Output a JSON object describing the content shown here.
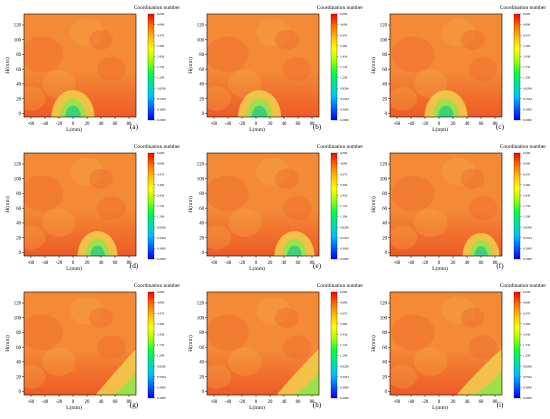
{
  "figure": {
    "panel_labels": [
      "(a)",
      "(b)",
      "(c)",
      "(d)",
      "(e)",
      "(f)",
      "(g)",
      "(h)",
      "(i)"
    ]
  },
  "chart_data": [
    {
      "type": "heatmap",
      "panel": "(a)",
      "title": "Coordination number",
      "xlabel": "L(mm)",
      "ylabel": "H(mm)",
      "x_ticks": [
        -60,
        -40,
        -20,
        0,
        20,
        40,
        60,
        80
      ],
      "y_ticks": [
        0,
        20,
        40,
        60,
        80,
        100,
        120
      ],
      "xlim": [
        -70,
        90
      ],
      "ylim": [
        -5,
        135
      ],
      "hole_center_x": 0,
      "hole_radius": 14,
      "hole_shape": "dome",
      "colorbar_ticks": [
        "6.000",
        "4.696",
        "4.370",
        "3.366",
        "2.436",
        "1.732",
        "1.209",
        "0.8296",
        "0.5504",
        "0.3000",
        "0.2000"
      ]
    },
    {
      "type": "heatmap",
      "panel": "(b)",
      "title": "Coordination number",
      "xlabel": "L(mm)",
      "ylabel": "H(mm)",
      "x_ticks": [
        -60,
        -40,
        -20,
        0,
        20,
        40,
        60,
        80
      ],
      "y_ticks": [
        0,
        20,
        40,
        60,
        80,
        100,
        120
      ],
      "xlim": [
        -70,
        90
      ],
      "ylim": [
        -5,
        135
      ],
      "hole_center_x": 5,
      "hole_radius": 14,
      "hole_shape": "dome",
      "colorbar_ticks": [
        "6.000",
        "4.696",
        "4.370",
        "3.366",
        "2.436",
        "1.732",
        "1.209",
        "0.8296",
        "0.5504",
        "0.3000",
        "0.2000"
      ]
    },
    {
      "type": "heatmap",
      "panel": "(c)",
      "title": "Coordination number",
      "xlabel": "L(mm)",
      "ylabel": "H(mm)",
      "x_ticks": [
        -60,
        -40,
        -20,
        0,
        20,
        40,
        60,
        80
      ],
      "y_ticks": [
        0,
        20,
        40,
        60,
        80,
        100,
        120
      ],
      "xlim": [
        -70,
        90
      ],
      "ylim": [
        -5,
        135
      ],
      "hole_center_x": 10,
      "hole_radius": 14,
      "hole_shape": "dome",
      "colorbar_ticks": [
        "6.000",
        "4.696",
        "4.370",
        "3.366",
        "2.436",
        "1.732",
        "1.209",
        "0.8296",
        "0.5504",
        "0.3000",
        "0.2000"
      ]
    },
    {
      "type": "heatmap",
      "panel": "(d)",
      "title": "Coordination number",
      "xlabel": "L(mm)",
      "ylabel": "H(mm)",
      "x_ticks": [
        -60,
        -40,
        -20,
        0,
        20,
        40,
        60,
        80
      ],
      "y_ticks": [
        0,
        20,
        40,
        60,
        80,
        100,
        120
      ],
      "xlim": [
        -70,
        90
      ],
      "ylim": [
        -5,
        135
      ],
      "hole_center_x": 35,
      "hole_radius": 13,
      "hole_shape": "dome",
      "colorbar_ticks": [
        "6.000",
        "4.696",
        "4.370",
        "3.366",
        "2.436",
        "1.732",
        "1.209",
        "0.8296",
        "0.5504",
        "0.3000",
        "0.2000"
      ]
    },
    {
      "type": "heatmap",
      "panel": "(e)",
      "title": "Coordination number",
      "xlabel": "L(mm)",
      "ylabel": "H(mm)",
      "x_ticks": [
        -60,
        -40,
        -20,
        0,
        20,
        40,
        60,
        80
      ],
      "y_ticks": [
        0,
        20,
        40,
        60,
        80,
        100,
        120
      ],
      "xlim": [
        -70,
        90
      ],
      "ylim": [
        -5,
        135
      ],
      "hole_center_x": 55,
      "hole_radius": 13,
      "hole_shape": "dome",
      "colorbar_ticks": [
        "6.000",
        "4.696",
        "4.370",
        "3.366",
        "2.436",
        "1.732",
        "1.209",
        "0.8296",
        "0.5504",
        "0.3000",
        "0.2000"
      ]
    },
    {
      "type": "heatmap",
      "panel": "(f)",
      "title": "Coordination number",
      "xlabel": "L(mm)",
      "ylabel": "H(mm)",
      "x_ticks": [
        -60,
        -40,
        -20,
        0,
        20,
        40,
        60,
        80
      ],
      "y_ticks": [
        0,
        20,
        40,
        60,
        80,
        100,
        120
      ],
      "xlim": [
        -70,
        90
      ],
      "ylim": [
        -5,
        135
      ],
      "hole_center_x": 60,
      "hole_radius": 12,
      "hole_shape": "dome",
      "colorbar_ticks": [
        "6.000",
        "4.696",
        "4.370",
        "3.366",
        "2.436",
        "1.732",
        "1.209",
        "0.8296",
        "0.5504",
        "0.3000",
        "0.2000"
      ]
    },
    {
      "type": "heatmap",
      "panel": "(g)",
      "title": "Coordination number",
      "xlabel": "L(mm)",
      "ylabel": "H(mm)",
      "x_ticks": [
        -60,
        -40,
        -20,
        0,
        20,
        40,
        60,
        80
      ],
      "y_ticks": [
        0,
        20,
        40,
        60,
        80,
        100,
        120
      ],
      "xlim": [
        -70,
        90
      ],
      "ylim": [
        -5,
        135
      ],
      "hole_center_x": 75,
      "hole_radius": 18,
      "hole_shape": "edge",
      "colorbar_ticks": [
        "6.000",
        "4.696",
        "4.370",
        "3.366",
        "2.436",
        "1.732",
        "1.209",
        "0.8296",
        "0.5504",
        "0.3000",
        "0.2000"
      ]
    },
    {
      "type": "heatmap",
      "panel": "(h)",
      "title": "Coordination number",
      "xlabel": "L(mm)",
      "ylabel": "H(mm)",
      "x_ticks": [
        -60,
        -40,
        -20,
        0,
        20,
        40,
        60,
        80
      ],
      "y_ticks": [
        0,
        20,
        40,
        60,
        80,
        100,
        120
      ],
      "xlim": [
        -70,
        90
      ],
      "ylim": [
        -5,
        135
      ],
      "hole_center_x": 72,
      "hole_radius": 18,
      "hole_shape": "edge",
      "colorbar_ticks": [
        "6.000",
        "4.696",
        "4.370",
        "3.366",
        "2.436",
        "1.732",
        "1.209",
        "0.8296",
        "0.5504",
        "0.3000",
        "0.2000"
      ]
    },
    {
      "type": "heatmap",
      "panel": "(i)",
      "title": "Coordination number",
      "xlabel": "L(mm)",
      "ylabel": "H(mm)",
      "x_ticks": [
        -60,
        -40,
        -20,
        0,
        20,
        40,
        60,
        80
      ],
      "y_ticks": [
        0,
        20,
        40,
        60,
        80,
        100,
        120
      ],
      "xlim": [
        -70,
        90
      ],
      "ylim": [
        -5,
        135
      ],
      "hole_center_x": 68,
      "hole_radius": 18,
      "hole_shape": "edge",
      "colorbar_ticks": [
        "6.000",
        "4.696",
        "4.370",
        "3.366",
        "2.436",
        "1.732",
        "1.209",
        "0.8296",
        "0.5504",
        "0.3000",
        "0.2000"
      ]
    }
  ],
  "colors": {
    "field_base": "#f48a36",
    "field_dark": "#ee5a26",
    "field_light": "#f6b04a",
    "field_yellow": "#f2d04e",
    "hole_center": "#3fd07c",
    "hole_mid": "#9ee04a",
    "colorbar": [
      "#ff0000",
      "#ff6a00",
      "#ffc000",
      "#ffff00",
      "#a0ff00",
      "#00ff40",
      "#00e0a0",
      "#00c0ff",
      "#0060ff",
      "#0000ff"
    ]
  }
}
